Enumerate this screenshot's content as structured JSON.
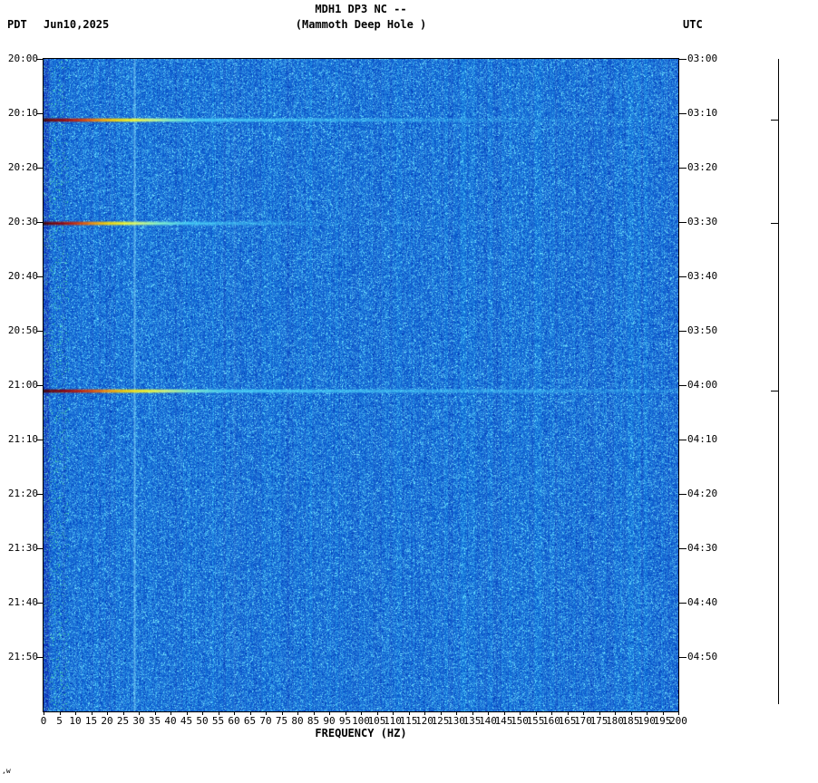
{
  "header": {
    "title": "MDH1 DP3 NC --",
    "subtitle": "(Mammoth Deep Hole )",
    "left_tz": "PDT",
    "date": "Jun10,2025",
    "right_tz": "UTC"
  },
  "chart_data": {
    "type": "heatmap",
    "title": "MDH1 DP3 NC -- (Mammoth Deep Hole ) seismic spectrogram",
    "xlabel": "FREQUENCY (HZ)",
    "x_range": [
      0,
      200
    ],
    "x_ticks": [
      0,
      5,
      10,
      15,
      20,
      25,
      30,
      35,
      40,
      45,
      50,
      55,
      60,
      65,
      70,
      75,
      80,
      85,
      90,
      95,
      100,
      105,
      110,
      115,
      120,
      125,
      130,
      135,
      140,
      145,
      150,
      155,
      160,
      165,
      170,
      175,
      180,
      185,
      190,
      195,
      200
    ],
    "time_range_minutes": 120,
    "left_time_labels": [
      "20:00",
      "20:10",
      "20:20",
      "20:30",
      "20:40",
      "20:50",
      "21:00",
      "21:10",
      "21:20",
      "21:30",
      "21:40",
      "21:50"
    ],
    "right_time_labels": [
      "03:00",
      "03:10",
      "03:20",
      "03:30",
      "03:40",
      "03:50",
      "04:00",
      "04:10",
      "04:20",
      "04:30",
      "04:40",
      "04:50"
    ],
    "grid": false,
    "legend_position": "none",
    "noise_colors": {
      "base": "#1478dc",
      "light": "#78dcff",
      "dark": "#003ca0"
    },
    "persistent_tones": [
      {
        "hz": 28.5,
        "strength": 0.5
      },
      {
        "hz": 60,
        "strength": 0.12
      }
    ],
    "events": [
      {
        "pdt_time": "20:11",
        "utc_time": "03:11",
        "minutes": 11.1,
        "max_freq": 150,
        "tail": 0.18,
        "red_extent": 1.0
      },
      {
        "pdt_time": "20:30",
        "utc_time": "03:30",
        "minutes": 30.2,
        "max_freq": 90,
        "tail": 0.1,
        "red_extent": 0.9
      },
      {
        "pdt_time": "21:01",
        "utc_time": "04:01",
        "minutes": 61.0,
        "max_freq": 200,
        "tail": 0.25,
        "red_extent": 1.15
      }
    ]
  },
  "footer_mark": ",w"
}
